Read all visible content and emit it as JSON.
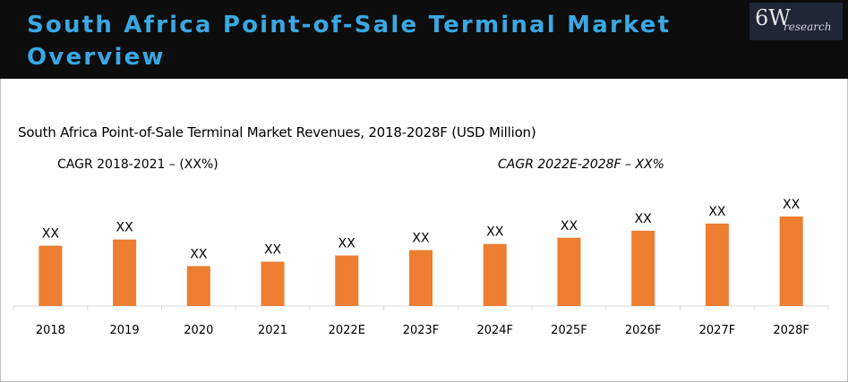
{
  "header": {
    "title": "South Africa Point-of-Sale Terminal Market Overview",
    "logo_main": "6W",
    "logo_sub": "research"
  },
  "colors": {
    "banner_bg": "#0d0d0d",
    "title_color": "#3aa8e2",
    "bar_color": "#ed7d31"
  },
  "chart_data": {
    "type": "bar",
    "title": "South Africa Point-of-Sale Terminal Market Revenues, 2018-2028F (USD Million)",
    "annotations": [
      "CAGR 2018-2021 – (XX%)",
      "CAGR 2022E-2028F – XX%"
    ],
    "categories": [
      "2018",
      "2019",
      "2020",
      "2021",
      "2022E",
      "2023F",
      "2024F",
      "2025F",
      "2026F",
      "2027F",
      "2028F"
    ],
    "values": [
      68,
      75,
      45,
      50,
      57,
      63,
      70,
      77,
      85,
      93,
      101
    ],
    "data_labels": [
      "XX",
      "XX",
      "XX",
      "XX",
      "XX",
      "XX",
      "XX",
      "XX",
      "XX",
      "XX",
      "XX"
    ],
    "ylim": [
      0,
      101
    ],
    "xlabel": "",
    "ylabel": ""
  }
}
